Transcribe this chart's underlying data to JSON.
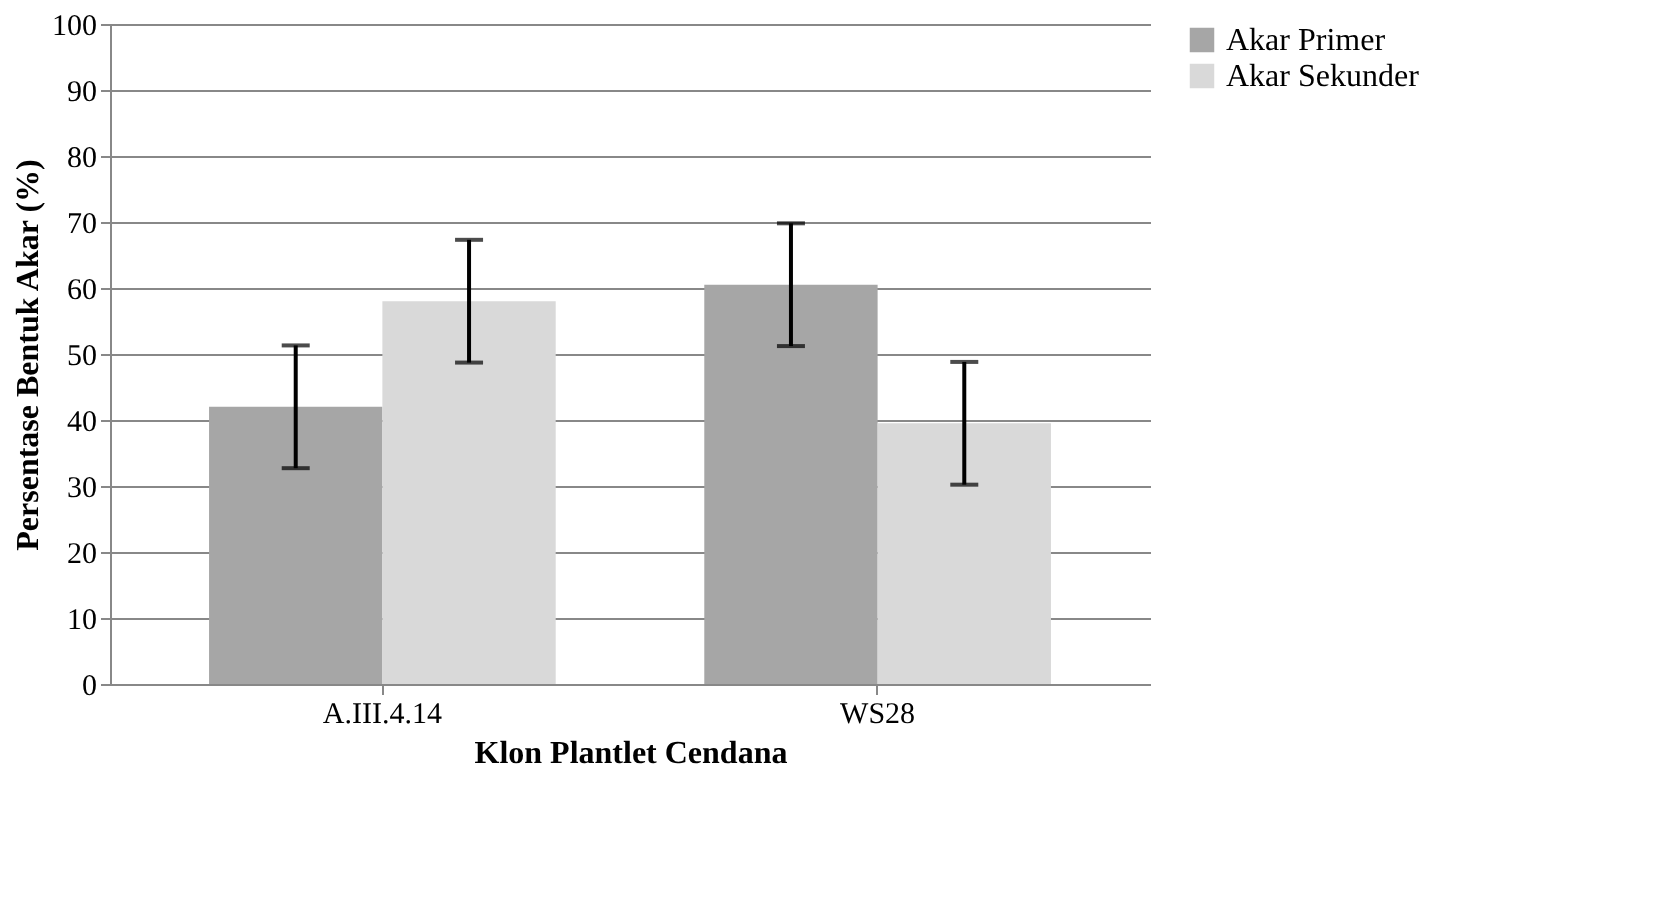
{
  "chart_data": {
    "type": "bar",
    "xlabel": "Klon Plantlet Cendana",
    "ylabel": "Persentase Bentuk Akar (%)",
    "categories": [
      "A.III.4.14",
      "WS28"
    ],
    "series": [
      {
        "name": "Akar Primer",
        "color": "#a6a6a6",
        "values": [
          42,
          60.5
        ],
        "errors": [
          9.3,
          9.3
        ]
      },
      {
        "name": "Akar Sekunder",
        "color": "#d9d9d9",
        "values": [
          58,
          39.5
        ],
        "errors": [
          9.3,
          9.3
        ]
      }
    ],
    "ylim": [
      0,
      100
    ],
    "yticks": [
      0,
      10,
      20,
      30,
      40,
      50,
      60,
      70,
      80,
      90,
      100
    ],
    "grid": "y",
    "legend": "right"
  }
}
